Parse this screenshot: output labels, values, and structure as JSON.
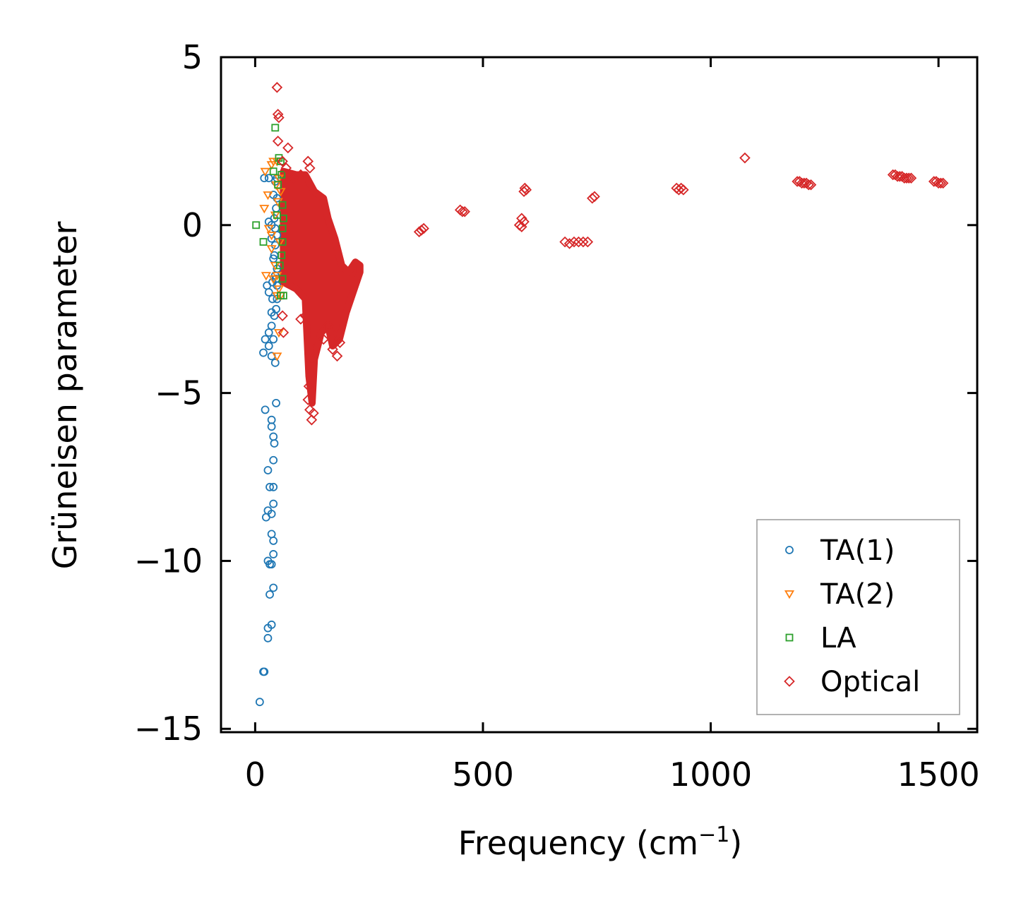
{
  "chart_data": {
    "type": "scatter",
    "title": "",
    "xlabel": "Frequency (cm",
    "xlabel_sup": "−1",
    "xlabel_end": ")",
    "ylabel": "Grüneisen parameter",
    "xlim": [
      -75,
      1585
    ],
    "ylim": [
      -15.1,
      5
    ],
    "x_ticks": [
      0,
      500,
      1000,
      1500
    ],
    "x_tick_labels": [
      "0",
      "500",
      "1000",
      "1500"
    ],
    "y_ticks": [
      5,
      0,
      -5,
      -10,
      -15
    ],
    "y_tick_labels": [
      "5",
      "0",
      "−5",
      "−10",
      "−15"
    ],
    "grid": false,
    "legend_position": "lower-right",
    "series": [
      {
        "name": "TA(1)",
        "color": "#1f77b4",
        "marker": "circle",
        "points": [
          [
            10,
            -14.2
          ],
          [
            18,
            -13.3
          ],
          [
            20,
            -13.3
          ],
          [
            28,
            -12.3
          ],
          [
            28,
            -12.0
          ],
          [
            36,
            -11.9
          ],
          [
            32,
            -11.0
          ],
          [
            40,
            -10.8
          ],
          [
            28,
            -10.0
          ],
          [
            32,
            -10.1
          ],
          [
            36,
            -10.1
          ],
          [
            40,
            -9.8
          ],
          [
            40,
            -9.4
          ],
          [
            36,
            -9.2
          ],
          [
            24,
            -8.7
          ],
          [
            28,
            -8.5
          ],
          [
            36,
            -8.6
          ],
          [
            40,
            -8.3
          ],
          [
            32,
            -7.8
          ],
          [
            40,
            -7.8
          ],
          [
            28,
            -7.3
          ],
          [
            40,
            -7.0
          ],
          [
            42,
            -6.5
          ],
          [
            40,
            -6.3
          ],
          [
            36,
            -6.0
          ],
          [
            36,
            -5.8
          ],
          [
            22,
            -5.5
          ],
          [
            46,
            -5.3
          ],
          [
            44,
            -4.1
          ],
          [
            36,
            -3.9
          ],
          [
            30,
            -3.6
          ],
          [
            18,
            -3.8
          ],
          [
            22,
            -3.4
          ],
          [
            40,
            -3.4
          ],
          [
            36,
            -3.0
          ],
          [
            30,
            -3.2
          ],
          [
            36,
            -2.6
          ],
          [
            42,
            -2.7
          ],
          [
            46,
            -2.5
          ],
          [
            48,
            -2.2
          ],
          [
            30,
            -2.0
          ],
          [
            38,
            -1.7
          ],
          [
            44,
            -1.5
          ],
          [
            48,
            -1.3
          ],
          [
            40,
            -1.0
          ],
          [
            44,
            -0.6
          ],
          [
            48,
            -0.3
          ],
          [
            30,
            0.1
          ],
          [
            36,
            0.0
          ],
          [
            42,
            0.2
          ],
          [
            46,
            0.5
          ],
          [
            40,
            0.9
          ],
          [
            44,
            1.3
          ],
          [
            48,
            1.4
          ],
          [
            30,
            1.4
          ],
          [
            20,
            1.4
          ],
          [
            36,
            -0.4
          ],
          [
            42,
            -0.9
          ],
          [
            46,
            -1.6
          ],
          [
            48,
            -1.8
          ],
          [
            38,
            -2.2
          ],
          [
            26,
            -1.8
          ],
          [
            44,
            -0.1
          ],
          [
            48,
            0.8
          ]
        ]
      },
      {
        "name": "TA(2)",
        "color": "#ff7f0e",
        "marker": "triangle-down",
        "points": [
          [
            20,
            0.5
          ],
          [
            28,
            0.9
          ],
          [
            36,
            1.8
          ],
          [
            40,
            1.9
          ],
          [
            22,
            1.6
          ],
          [
            48,
            1.9
          ],
          [
            52,
            1.4
          ],
          [
            56,
            1.0
          ],
          [
            30,
            -0.1
          ],
          [
            36,
            -0.7
          ],
          [
            44,
            -1.2
          ],
          [
            48,
            -1.5
          ],
          [
            24,
            -1.5
          ],
          [
            52,
            -1.9
          ],
          [
            56,
            -2.1
          ],
          [
            48,
            -2.1
          ],
          [
            52,
            -3.2
          ],
          [
            48,
            -3.9
          ],
          [
            36,
            -0.3
          ],
          [
            44,
            0.3
          ],
          [
            50,
            0.7
          ],
          [
            54,
            -0.5
          ],
          [
            40,
            -1.6
          ],
          [
            46,
            1.2
          ]
        ]
      },
      {
        "name": "LA",
        "color": "#2ca02c",
        "marker": "square",
        "points": [
          [
            2,
            0.0
          ],
          [
            18,
            -0.5
          ],
          [
            44,
            2.9
          ],
          [
            52,
            2.0
          ],
          [
            56,
            1.9
          ],
          [
            58,
            1.5
          ],
          [
            60,
            0.6
          ],
          [
            62,
            0.2
          ],
          [
            60,
            -0.1
          ],
          [
            58,
            -0.9
          ],
          [
            60,
            -1.6
          ],
          [
            56,
            -2.1
          ],
          [
            62,
            -2.1
          ],
          [
            50,
            1.2
          ],
          [
            48,
            0.3
          ],
          [
            54,
            -1.2
          ],
          [
            40,
            1.6
          ],
          [
            60,
            -0.5
          ]
        ]
      },
      {
        "name": "Optical",
        "color": "#d62728",
        "marker": "diamond",
        "points": [
          [
            48,
            4.1
          ],
          [
            50,
            3.3
          ],
          [
            52,
            3.2
          ],
          [
            50,
            2.5
          ],
          [
            72,
            2.3
          ],
          [
            60,
            1.9
          ],
          [
            116,
            1.9
          ],
          [
            120,
            1.7
          ],
          [
            68,
            1.7
          ],
          [
            84,
            1.4
          ],
          [
            100,
            1.5
          ],
          [
            116,
            -5.2
          ],
          [
            120,
            -5.5
          ],
          [
            124,
            -5.8
          ],
          [
            128,
            -5.6
          ],
          [
            118,
            -4.8
          ],
          [
            122,
            -4.4
          ],
          [
            126,
            -4.0
          ],
          [
            130,
            -3.7
          ],
          [
            170,
            -3.7
          ],
          [
            180,
            -3.9
          ],
          [
            186,
            -3.5
          ],
          [
            174,
            -3.3
          ],
          [
            150,
            -3.4
          ],
          [
            160,
            -3.0
          ],
          [
            100,
            -2.8
          ],
          [
            110,
            -2.7
          ],
          [
            60,
            -2.7
          ],
          [
            62,
            -3.2
          ],
          [
            370,
            -0.1
          ],
          [
            360,
            -0.2
          ],
          [
            365,
            -0.15
          ],
          [
            455,
            0.4
          ],
          [
            460,
            0.4
          ],
          [
            450,
            0.45
          ],
          [
            580,
            0.0
          ],
          [
            585,
            -0.05
          ],
          [
            590,
            0.1
          ],
          [
            585,
            0.2
          ],
          [
            590,
            1.0
          ],
          [
            592,
            1.1
          ],
          [
            595,
            1.05
          ],
          [
            680,
            -0.5
          ],
          [
            690,
            -0.55
          ],
          [
            700,
            -0.5
          ],
          [
            710,
            -0.5
          ],
          [
            720,
            -0.5
          ],
          [
            730,
            -0.5
          ],
          [
            740,
            0.8
          ],
          [
            745,
            0.85
          ],
          [
            925,
            1.1
          ],
          [
            930,
            1.05
          ],
          [
            935,
            1.1
          ],
          [
            940,
            1.05
          ],
          [
            1075,
            2.0
          ],
          [
            1190,
            1.3
          ],
          [
            1195,
            1.3
          ],
          [
            1200,
            1.25
          ],
          [
            1205,
            1.25
          ],
          [
            1210,
            1.25
          ],
          [
            1215,
            1.2
          ],
          [
            1220,
            1.2
          ],
          [
            1400,
            1.5
          ],
          [
            1405,
            1.5
          ],
          [
            1410,
            1.45
          ],
          [
            1415,
            1.45
          ],
          [
            1420,
            1.45
          ],
          [
            1425,
            1.4
          ],
          [
            1430,
            1.4
          ],
          [
            1435,
            1.4
          ],
          [
            1440,
            1.4
          ],
          [
            1490,
            1.3
          ],
          [
            1495,
            1.3
          ],
          [
            1500,
            1.25
          ],
          [
            1505,
            1.25
          ],
          [
            1510,
            1.25
          ]
        ],
        "dense_band": {
          "x_range": [
            62,
            230
          ],
          "upper": [
            [
              62,
              1.6
            ],
            [
              90,
              1.5
            ],
            [
              110,
              1.5
            ],
            [
              130,
              1.0
            ],
            [
              150,
              0.8
            ],
            [
              160,
              0.2
            ],
            [
              175,
              -0.4
            ],
            [
              190,
              -1.2
            ],
            [
              205,
              -1.4
            ],
            [
              220,
              -1.1
            ],
            [
              230,
              -1.2
            ]
          ],
          "lower": [
            [
              62,
              -1.7
            ],
            [
              90,
              -1.9
            ],
            [
              110,
              -2.2
            ],
            [
              118,
              -4.5
            ],
            [
              125,
              -5.3
            ],
            [
              130,
              -4.0
            ],
            [
              145,
              -3.2
            ],
            [
              160,
              -3.0
            ],
            [
              170,
              -3.6
            ],
            [
              185,
              -3.4
            ],
            [
              200,
              -2.6
            ],
            [
              215,
              -2.0
            ],
            [
              230,
              -1.4
            ]
          ]
        }
      }
    ]
  }
}
